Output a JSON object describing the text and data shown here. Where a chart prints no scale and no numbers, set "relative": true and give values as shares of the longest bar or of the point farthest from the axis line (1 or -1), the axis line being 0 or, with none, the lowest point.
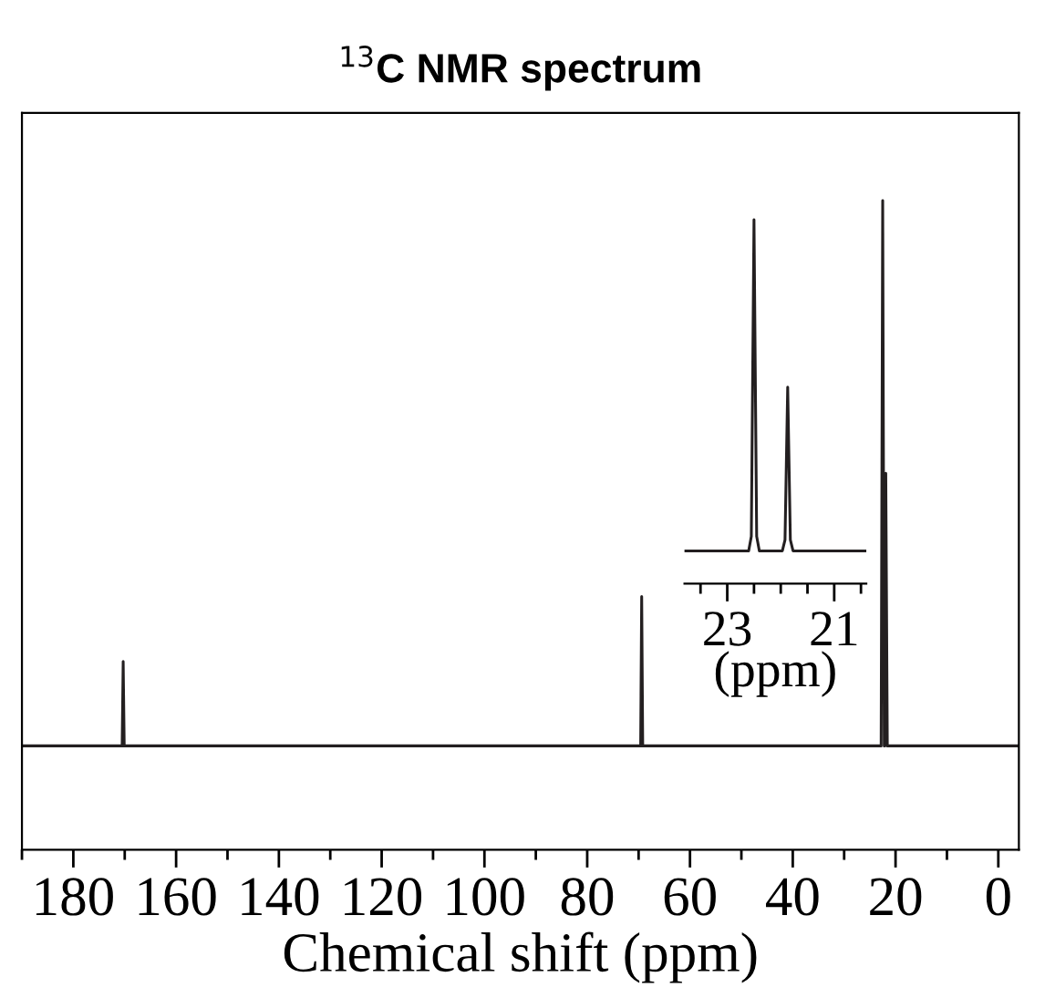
{
  "chart_data": [
    {
      "type": "line",
      "title": "$^{13}$C NMR spectrum",
      "xlabel": "Chemical shift (ppm)",
      "relative": true,
      "tick_labels": "x",
      "xlim": [
        190,
        -4
      ],
      "xticks": [
        180,
        160,
        140,
        120,
        100,
        80,
        60,
        40,
        20,
        0
      ],
      "series": [
        {
          "color": "#231f20",
          "x": [
            190,
            170.5,
            170.3,
            170.1,
            69.6,
            69.4,
            69.2,
            22.8,
            22.5,
            22.2,
            22.1,
            21.9,
            21.6,
            -4
          ],
          "values": [
            0.16,
            0.16,
            0.29,
            0.16,
            0.16,
            0.39,
            0.16,
            0.16,
            1,
            0.16,
            0.16,
            0.58,
            0.16,
            0.16
          ]
        }
      ]
    },
    {
      "type": "line",
      "xlabel": "(ppm)",
      "relative": true,
      "tick_labels": "x",
      "xlim": [
        23.8,
        20.4
      ],
      "xticks": [
        23,
        21
      ],
      "series": [
        {
          "color": "#231f20",
          "x": [
            23.8,
            22.6,
            22.55,
            22.5,
            22.45,
            22.4,
            21.97,
            21.92,
            21.87,
            21.82,
            21.77,
            20.4
          ],
          "values": [
            0.09,
            0.09,
            0.13,
            1,
            0.13,
            0.09,
            0.09,
            0.12,
            0.54,
            0.12,
            0.09,
            0.09
          ]
        }
      ]
    }
  ]
}
